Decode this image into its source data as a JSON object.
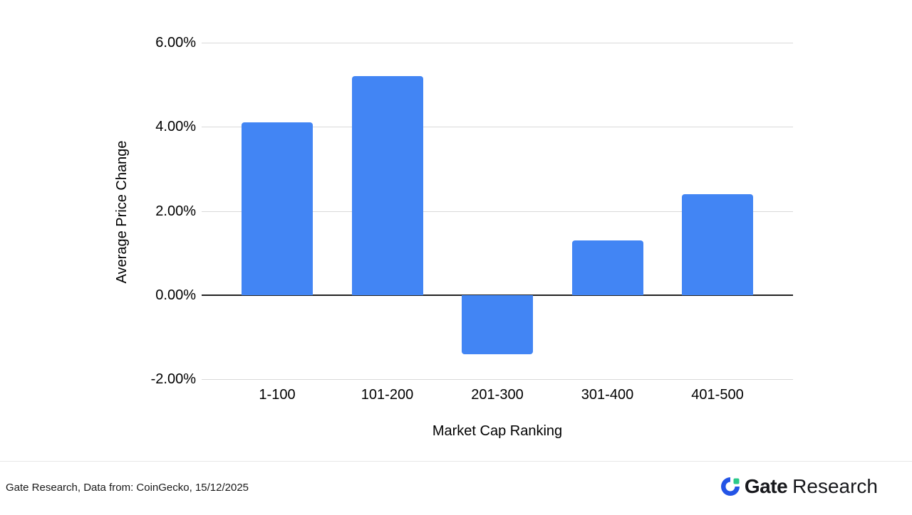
{
  "chart_data": {
    "type": "bar",
    "title": "",
    "categories": [
      "1-100",
      "101-200",
      "201-300",
      "301-400",
      "401-500"
    ],
    "values": [
      4.1,
      5.2,
      -1.4,
      1.3,
      2.4
    ],
    "xlabel": "Market Cap Ranking",
    "ylabel": "Average Price Change",
    "ylim": [
      -2,
      6
    ],
    "tick_values": [
      6,
      4,
      2,
      0,
      -2
    ],
    "tick_labels": [
      "6.00%",
      "4.00%",
      "2.00%",
      "0.00%",
      "-2.00%"
    ],
    "grid": true,
    "legend_position": "none",
    "bar_color": "#4285f4",
    "grid_color": "#d9d9d9",
    "zero_line_color": "#222222"
  },
  "footer": {
    "attribution": "Gate Research, Data from: CoinGecko, 15/12/2025",
    "logo": {
      "brand_bold": "Gate",
      "brand_regular": "Research",
      "mark_blue": "#2354e6",
      "mark_green": "#2bc98a"
    }
  }
}
